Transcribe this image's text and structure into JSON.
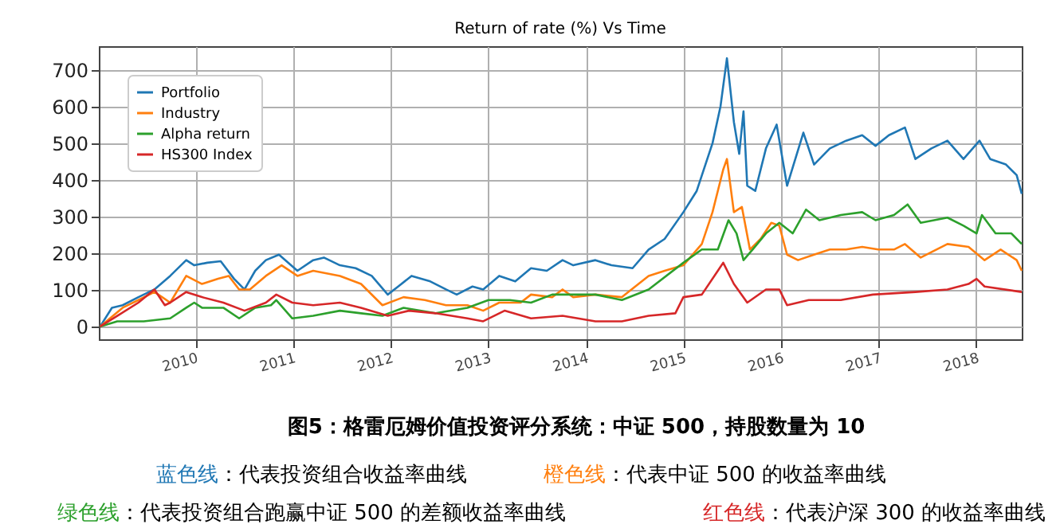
{
  "chart_data": {
    "type": "line",
    "title": "Return of rate (%) Vs Time",
    "xlim": [
      "2009-01-05",
      "2018-06-20"
    ],
    "ylim": [
      -35,
      765
    ],
    "xticks": [
      "2010",
      "2011",
      "2012",
      "2013",
      "2014",
      "2015",
      "2016",
      "2017",
      "2018"
    ],
    "yticks": [
      0,
      100,
      200,
      300,
      400,
      500,
      600,
      700
    ],
    "grid": true,
    "legend": "top left",
    "line_style": "solid",
    "marker": "none",
    "series": [
      {
        "name": "Portfolio",
        "color": "#1f77b4",
        "x": [
          "2009-01-10",
          "2009-02-23",
          "2009-04-04",
          "2009-06-02",
          "2009-08-01",
          "2009-09-29",
          "2009-11-28",
          "2009-12-28",
          "2010-02-15",
          "2010-04-06",
          "2010-05-26",
          "2010-07-04",
          "2010-08-13",
          "2010-09-22",
          "2010-11-10",
          "2011-01-18",
          "2011-03-18",
          "2011-04-27",
          "2011-06-26",
          "2011-08-24",
          "2011-10-23",
          "2011-12-22",
          "2012-01-30",
          "2012-03-20",
          "2012-05-29",
          "2012-07-27",
          "2012-09-05",
          "2012-11-03",
          "2012-12-13",
          "2013-02-11",
          "2013-04-12",
          "2013-06-10",
          "2013-08-08",
          "2013-10-06",
          "2013-11-15",
          "2014-02-06",
          "2014-04-07",
          "2014-06-25",
          "2014-08-24",
          "2014-10-23",
          "2015-01-01",
          "2015-02-20",
          "2015-04-20",
          "2015-05-20",
          "2015-06-13",
          "2015-07-09",
          "2015-07-29",
          "2015-08-14",
          "2015-08-28",
          "2015-09-27",
          "2015-11-06",
          "2015-12-16",
          "2016-01-24",
          "2016-03-25",
          "2016-05-04",
          "2016-07-02",
          "2016-09-01",
          "2016-10-31",
          "2016-12-20",
          "2017-02-08",
          "2017-04-09",
          "2017-05-18",
          "2017-07-17",
          "2017-09-15",
          "2017-11-14",
          "2018-01-13",
          "2018-02-22",
          "2018-04-22",
          "2018-06-01",
          "2018-06-20"
        ],
        "values": [
          0,
          51,
          58,
          80,
          101,
          138,
          181,
          167,
          174,
          178,
          130,
          101,
          152,
          181,
          196,
          152,
          181,
          188,
          167,
          159,
          138,
          87,
          109,
          138,
          123,
          101,
          87,
          109,
          101,
          138,
          123,
          159,
          152,
          181,
          167,
          181,
          167,
          159,
          210,
          239,
          312,
          370,
          500,
          601,
          732,
          558,
          471,
          587,
          384,
          370,
          486,
          551,
          384,
          529,
          442,
          486,
          507,
          522,
          493,
          522,
          543,
          457,
          486,
          507,
          457,
          507,
          457,
          442,
          413,
          362
        ]
      },
      {
        "name": "Industry",
        "color": "#ff7f0e",
        "x": [
          "2009-01-10",
          "2009-04-04",
          "2009-06-02",
          "2009-08-01",
          "2009-08-30",
          "2009-09-29",
          "2009-11-28",
          "2010-01-26",
          "2010-03-27",
          "2010-05-06",
          "2010-06-14",
          "2010-07-24",
          "2010-09-22",
          "2010-11-20",
          "2011-01-18",
          "2011-03-18",
          "2011-06-26",
          "2011-09-13",
          "2011-12-02",
          "2012-02-19",
          "2012-05-09",
          "2012-07-27",
          "2012-10-15",
          "2012-12-13",
          "2013-02-11",
          "2013-05-02",
          "2013-06-10",
          "2013-08-28",
          "2013-10-06",
          "2013-11-15",
          "2014-02-06",
          "2014-05-16",
          "2014-08-24",
          "2014-10-23",
          "2015-01-01",
          "2015-03-11",
          "2015-04-20",
          "2015-05-30",
          "2015-06-13",
          "2015-07-09",
          "2015-08-08",
          "2015-09-07",
          "2015-10-17",
          "2015-11-26",
          "2015-12-26",
          "2016-01-24",
          "2016-03-05",
          "2016-05-04",
          "2016-07-02",
          "2016-09-01",
          "2016-10-31",
          "2016-12-30",
          "2017-02-27",
          "2017-04-09",
          "2017-06-07",
          "2017-09-15",
          "2017-12-03",
          "2018-02-01",
          "2018-04-02",
          "2018-06-01",
          "2018-06-20"
        ],
        "values": [
          0,
          51,
          72,
          94,
          80,
          65,
          138,
          116,
          130,
          138,
          101,
          101,
          138,
          167,
          138,
          152,
          138,
          116,
          58,
          80,
          72,
          58,
          58,
          43,
          65,
          65,
          87,
          80,
          101,
          80,
          87,
          80,
          138,
          152,
          167,
          225,
          312,
          428,
          457,
          312,
          326,
          210,
          239,
          283,
          275,
          196,
          181,
          196,
          210,
          210,
          217,
          210,
          210,
          225,
          188,
          225,
          217,
          181,
          210,
          181,
          152
        ]
      },
      {
        "name": "Alpha return",
        "color": "#2ca02c",
        "x": [
          "2009-01-10",
          "2009-03-15",
          "2009-06-22",
          "2009-09-29",
          "2009-11-28",
          "2009-12-28",
          "2010-01-26",
          "2010-04-16",
          "2010-06-14",
          "2010-08-13",
          "2010-10-11",
          "2010-10-31",
          "2010-12-30",
          "2011-03-18",
          "2011-06-26",
          "2011-09-13",
          "2011-12-02",
          "2012-02-19",
          "2012-06-18",
          "2012-10-15",
          "2013-01-02",
          "2013-03-23",
          "2013-06-10",
          "2013-08-28",
          "2013-11-15",
          "2014-02-06",
          "2014-05-16",
          "2014-08-24",
          "2015-01-01",
          "2015-03-11",
          "2015-05-10",
          "2015-06-19",
          "2015-07-19",
          "2015-08-14",
          "2015-09-17",
          "2015-11-06",
          "2015-12-26",
          "2016-02-14",
          "2016-04-04",
          "2016-05-24",
          "2016-08-12",
          "2016-10-31",
          "2016-12-20",
          "2017-02-27",
          "2017-04-19",
          "2017-06-07",
          "2017-09-15",
          "2017-11-14",
          "2018-01-02",
          "2018-01-22",
          "2018-03-14",
          "2018-05-12",
          "2018-06-20"
        ],
        "values": [
          0,
          14,
          14,
          22,
          51,
          65,
          51,
          51,
          22,
          51,
          58,
          72,
          22,
          29,
          43,
          36,
          29,
          51,
          36,
          51,
          72,
          72,
          65,
          87,
          87,
          87,
          72,
          101,
          174,
          210,
          210,
          290,
          254,
          181,
          210,
          254,
          283,
          254,
          319,
          290,
          304,
          312,
          290,
          304,
          333,
          283,
          297,
          275,
          254,
          304,
          254,
          254,
          225
        ]
      },
      {
        "name": "HS300 Index",
        "color": "#d62728",
        "x": [
          "2009-01-10",
          "2009-03-15",
          "2009-06-02",
          "2009-08-01",
          "2009-09-09",
          "2009-09-29",
          "2009-11-28",
          "2010-01-26",
          "2010-04-16",
          "2010-07-04",
          "2010-09-22",
          "2010-10-31",
          "2010-12-30",
          "2011-03-18",
          "2011-06-26",
          "2011-09-13",
          "2011-12-22",
          "2012-03-10",
          "2012-06-18",
          "2012-10-15",
          "2012-12-13",
          "2013-03-03",
          "2013-06-10",
          "2013-10-06",
          "2014-02-06",
          "2014-05-16",
          "2014-08-24",
          "2014-12-02",
          "2015-01-01",
          "2015-03-11",
          "2015-05-10",
          "2015-05-30",
          "2015-07-09",
          "2015-08-28",
          "2015-11-06",
          "2015-12-26",
          "2016-01-24",
          "2016-04-14",
          "2016-08-12",
          "2016-12-10",
          "2017-05-18",
          "2017-09-15",
          "2017-12-03",
          "2018-01-02",
          "2018-02-01",
          "2018-06-20"
        ],
        "values": [
          0,
          29,
          65,
          101,
          58,
          65,
          94,
          80,
          65,
          43,
          65,
          87,
          65,
          58,
          65,
          51,
          29,
          43,
          36,
          22,
          14,
          43,
          22,
          29,
          14,
          14,
          29,
          36,
          80,
          87,
          152,
          174,
          116,
          65,
          101,
          101,
          58,
          72,
          72,
          87,
          94,
          101,
          116,
          130,
          109,
          94
        ]
      }
    ],
    "annotations": [
      "图5：格雷厄姆价值投资评分系统：中证 500，持股数量为 10",
      "蓝色线",
      "：代表投资组合收益率曲线",
      "橙色线",
      "：代表中证 500 的收益率曲线",
      "绿色线",
      "：代表投资组合跑赢中证 500 的差额收益率曲线",
      "红色线",
      "：代表沪深 300 的收益率曲线"
    ]
  }
}
